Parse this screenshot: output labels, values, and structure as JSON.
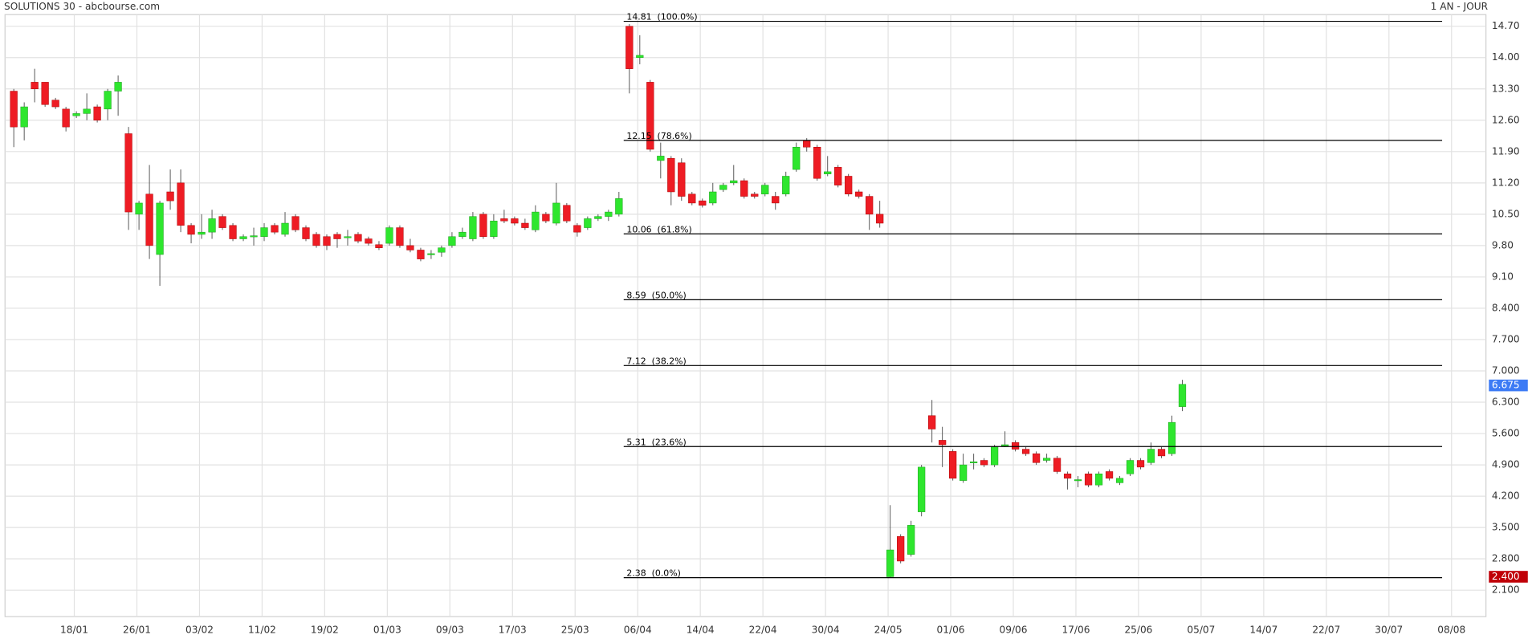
{
  "chart_data": {
    "type": "candlestick",
    "title": "SOLUTIONS 30 - abcbourse.com",
    "subtitle": "1 AN - JOUR",
    "x": [
      0,
      1,
      2,
      3,
      4,
      5,
      6,
      7,
      8,
      9,
      10,
      11,
      12,
      13,
      14,
      15,
      16,
      17,
      18,
      19,
      20,
      21,
      22,
      23,
      24,
      25,
      26,
      27,
      28,
      29,
      30,
      31,
      32,
      33,
      34,
      35,
      36,
      37,
      38,
      39,
      40,
      41,
      42,
      43,
      44,
      45,
      46,
      47,
      48,
      49,
      50,
      51,
      52,
      53,
      54,
      55,
      56,
      57,
      58,
      59,
      60,
      61,
      62,
      63,
      64,
      65,
      66,
      67,
      68,
      69,
      70,
      71,
      72,
      73,
      74,
      75,
      76,
      77,
      78,
      79,
      80,
      81,
      82,
      83,
      84,
      85,
      86,
      87,
      88,
      89,
      90,
      91,
      92,
      93,
      94,
      95,
      96,
      97,
      98,
      99,
      100,
      101,
      102,
      103,
      104,
      105,
      106,
      107,
      108,
      109,
      110,
      111,
      112
    ],
    "open": [
      13.25,
      12.45,
      13.45,
      13.45,
      13.05,
      12.85,
      12.7,
      12.75,
      12.9,
      12.85,
      13.25,
      12.3,
      10.5,
      10.95,
      9.6,
      11.0,
      11.2,
      10.25,
      10.05,
      10.1,
      10.45,
      10.25,
      9.95,
      10.0,
      10.0,
      10.25,
      10.05,
      10.45,
      10.2,
      10.05,
      10.0,
      10.05,
      9.98,
      10.05,
      9.95,
      9.82,
      9.85,
      10.2,
      9.8,
      9.7,
      9.6,
      9.65,
      9.8,
      10.0,
      9.95,
      10.5,
      10.0,
      10.4,
      10.4,
      10.3,
      10.15,
      10.5,
      10.3,
      10.7,
      10.25,
      10.2,
      10.4,
      10.45,
      10.5,
      14.7,
      14.0,
      13.45,
      11.7,
      11.75,
      11.65,
      10.95,
      10.8,
      10.75,
      11.05,
      11.2,
      11.25,
      10.95,
      10.95,
      10.9,
      10.95,
      11.5,
      12.15,
      12.0,
      11.4,
      11.55,
      11.35,
      11.0,
      10.9,
      10.5,
      2.4,
      3.3,
      2.9,
      3.85,
      6.0,
      5.45,
      5.2,
      4.55,
      4.95,
      5.0,
      4.9,
      5.33,
      5.4,
      5.25,
      5.15,
      5.0,
      5.05,
      4.7,
      4.55,
      4.7,
      4.45,
      4.75,
      4.5,
      4.7,
      5.0,
      4.95,
      5.25,
      5.15,
      6.2
    ],
    "high": [
      13.3,
      13.0,
      13.75,
      13.45,
      13.1,
      12.9,
      12.8,
      13.2,
      12.95,
      13.3,
      13.6,
      12.45,
      10.8,
      11.6,
      10.8,
      11.5,
      11.5,
      10.3,
      10.5,
      10.6,
      10.5,
      10.3,
      10.05,
      10.2,
      10.3,
      10.3,
      10.55,
      10.5,
      10.25,
      10.1,
      10.05,
      10.1,
      10.15,
      10.1,
      10.0,
      9.9,
      10.25,
      10.25,
      9.95,
      9.75,
      9.7,
      9.8,
      10.1,
      10.2,
      10.55,
      10.55,
      10.5,
      10.6,
      10.45,
      10.4,
      10.7,
      10.55,
      11.2,
      10.75,
      10.3,
      10.45,
      10.5,
      10.6,
      11.0,
      14.75,
      14.5,
      13.5,
      12.1,
      11.8,
      11.75,
      11.0,
      10.85,
      11.2,
      11.2,
      11.6,
      11.3,
      11.0,
      11.2,
      11.0,
      11.45,
      12.1,
      12.2,
      12.05,
      11.8,
      11.6,
      11.4,
      11.05,
      10.95,
      10.8,
      4.0,
      3.35,
      3.65,
      4.9,
      6.35,
      5.75,
      5.25,
      5.15,
      5.15,
      5.05,
      5.35,
      5.65,
      5.45,
      5.3,
      5.2,
      5.15,
      5.1,
      4.75,
      4.65,
      4.75,
      4.75,
      4.8,
      4.65,
      5.05,
      5.05,
      5.4,
      5.3,
      6.0,
      6.8
    ],
    "low": [
      12.0,
      12.15,
      13.0,
      12.9,
      12.85,
      12.35,
      12.65,
      12.6,
      12.55,
      12.6,
      12.7,
      10.15,
      10.15,
      9.5,
      8.9,
      10.6,
      10.1,
      9.85,
      9.95,
      9.95,
      10.15,
      9.9,
      9.9,
      9.8,
      9.9,
      10.05,
      10.0,
      10.1,
      9.9,
      9.75,
      9.7,
      9.75,
      9.8,
      9.85,
      9.8,
      9.7,
      9.8,
      9.75,
      9.65,
      9.45,
      9.5,
      9.55,
      9.75,
      9.95,
      9.9,
      9.95,
      9.95,
      10.3,
      10.25,
      10.15,
      10.1,
      10.3,
      10.25,
      10.3,
      10.0,
      10.15,
      10.35,
      10.35,
      10.45,
      13.2,
      13.85,
      11.9,
      11.3,
      10.7,
      10.8,
      10.7,
      10.65,
      10.7,
      11.0,
      11.15,
      10.85,
      10.85,
      10.9,
      10.6,
      10.9,
      11.45,
      11.9,
      11.25,
      11.35,
      11.1,
      10.9,
      10.85,
      10.15,
      10.2,
      2.38,
      2.7,
      2.85,
      3.75,
      5.4,
      4.85,
      4.55,
      4.5,
      4.8,
      4.85,
      4.85,
      5.3,
      5.2,
      5.1,
      4.9,
      4.95,
      4.7,
      4.35,
      4.4,
      4.4,
      4.4,
      4.55,
      4.45,
      4.65,
      4.8,
      4.9,
      5.05,
      5.1,
      6.1
    ],
    "close": [
      12.45,
      12.9,
      13.3,
      12.95,
      12.9,
      12.45,
      12.75,
      12.85,
      12.6,
      13.25,
      13.45,
      10.55,
      10.75,
      9.8,
      10.75,
      10.8,
      10.25,
      10.05,
      10.1,
      10.4,
      10.2,
      9.95,
      10.0,
      10.02,
      10.2,
      10.1,
      10.3,
      10.15,
      9.95,
      9.8,
      9.8,
      9.95,
      10.0,
      9.9,
      9.85,
      9.75,
      10.2,
      9.8,
      9.7,
      9.5,
      9.62,
      9.75,
      10.0,
      10.1,
      10.45,
      10.0,
      10.35,
      10.35,
      10.3,
      10.2,
      10.55,
      10.35,
      10.75,
      10.35,
      10.1,
      10.4,
      10.45,
      10.55,
      10.85,
      13.75,
      14.05,
      11.95,
      11.8,
      11.0,
      10.9,
      10.75,
      10.7,
      11.0,
      11.15,
      11.25,
      10.9,
      10.9,
      11.15,
      10.75,
      11.35,
      12.0,
      12.0,
      11.3,
      11.45,
      11.15,
      10.95,
      10.9,
      10.5,
      10.3,
      3.0,
      2.75,
      3.55,
      4.85,
      5.7,
      5.35,
      4.6,
      4.9,
      4.97,
      4.9,
      5.3,
      5.35,
      5.25,
      5.15,
      4.95,
      5.05,
      4.75,
      4.6,
      4.57,
      4.45,
      4.7,
      4.6,
      4.6,
      5.0,
      4.85,
      5.25,
      5.1,
      5.85,
      6.7
    ],
    "up_color": "#2ee62e",
    "down_color": "#ee1c24",
    "xlim": [
      -0.84,
      141.1
    ],
    "xticks": [
      {
        "value": 5.8,
        "label": "18/01"
      },
      {
        "value": 11.8,
        "label": "26/01"
      },
      {
        "value": 17.8,
        "label": "03/02"
      },
      {
        "value": 23.8,
        "label": "11/02"
      },
      {
        "value": 29.8,
        "label": "19/02"
      },
      {
        "value": 35.8,
        "label": "01/03"
      },
      {
        "value": 41.8,
        "label": "09/03"
      },
      {
        "value": 47.8,
        "label": "17/03"
      },
      {
        "value": 53.8,
        "label": "25/03"
      },
      {
        "value": 59.8,
        "label": "06/04"
      },
      {
        "value": 65.8,
        "label": "14/04"
      },
      {
        "value": 71.8,
        "label": "22/04"
      },
      {
        "value": 77.8,
        "label": "30/04"
      },
      {
        "value": 83.8,
        "label": "24/05"
      },
      {
        "value": 89.8,
        "label": "01/06"
      },
      {
        "value": 95.8,
        "label": "09/06"
      },
      {
        "value": 101.8,
        "label": "17/06"
      },
      {
        "value": 107.8,
        "label": "25/06"
      },
      {
        "value": 113.8,
        "label": "05/07"
      },
      {
        "value": 119.8,
        "label": "14/07"
      },
      {
        "value": 125.8,
        "label": "22/07"
      },
      {
        "value": 131.8,
        "label": "30/07"
      },
      {
        "value": 137.8,
        "label": "08/08"
      }
    ],
    "ylim": [
      1.51,
      14.96
    ],
    "yticks": [
      {
        "value": 14.7,
        "label": "14.70"
      },
      {
        "value": 14.0,
        "label": "14.00"
      },
      {
        "value": 13.3,
        "label": "13.30"
      },
      {
        "value": 12.6,
        "label": "12.60"
      },
      {
        "value": 11.9,
        "label": "11.90"
      },
      {
        "value": 11.2,
        "label": "11.20"
      },
      {
        "value": 10.5,
        "label": "10.50"
      },
      {
        "value": 9.8,
        "label": "9.80"
      },
      {
        "value": 9.1,
        "label": "9.10"
      },
      {
        "value": 8.4,
        "label": "8.400"
      },
      {
        "value": 7.7,
        "label": "7.700"
      },
      {
        "value": 7.0,
        "label": "7.000"
      },
      {
        "value": 6.3,
        "label": "6.300"
      },
      {
        "value": 5.6,
        "label": "5.600"
      },
      {
        "value": 4.9,
        "label": "4.900"
      },
      {
        "value": 4.2,
        "label": "4.200"
      },
      {
        "value": 3.5,
        "label": "3.500"
      },
      {
        "value": 2.8,
        "label": "2.800"
      },
      {
        "value": 2.1,
        "label": "2.100"
      }
    ],
    "grid": true,
    "levels": [
      {
        "value": 14.81,
        "label": "14.81  (100.0%)"
      },
      {
        "value": 12.15,
        "label": "12.15  (78.6%)"
      },
      {
        "value": 10.06,
        "label": "10.06  (61.8%)"
      },
      {
        "value": 8.59,
        "label": "8.59  (50.0%)"
      },
      {
        "value": 7.12,
        "label": "7.12  (38.2%)"
      },
      {
        "value": 5.31,
        "label": "5.31  (23.6%)"
      },
      {
        "value": 2.38,
        "label": "2.38  (0.0%)"
      }
    ],
    "price_markers": [
      {
        "value": 6.675,
        "label": "6.675",
        "color": "#3d7bf5"
      },
      {
        "value": 2.4,
        "label": "2.400",
        "color": "#c00008"
      }
    ]
  }
}
